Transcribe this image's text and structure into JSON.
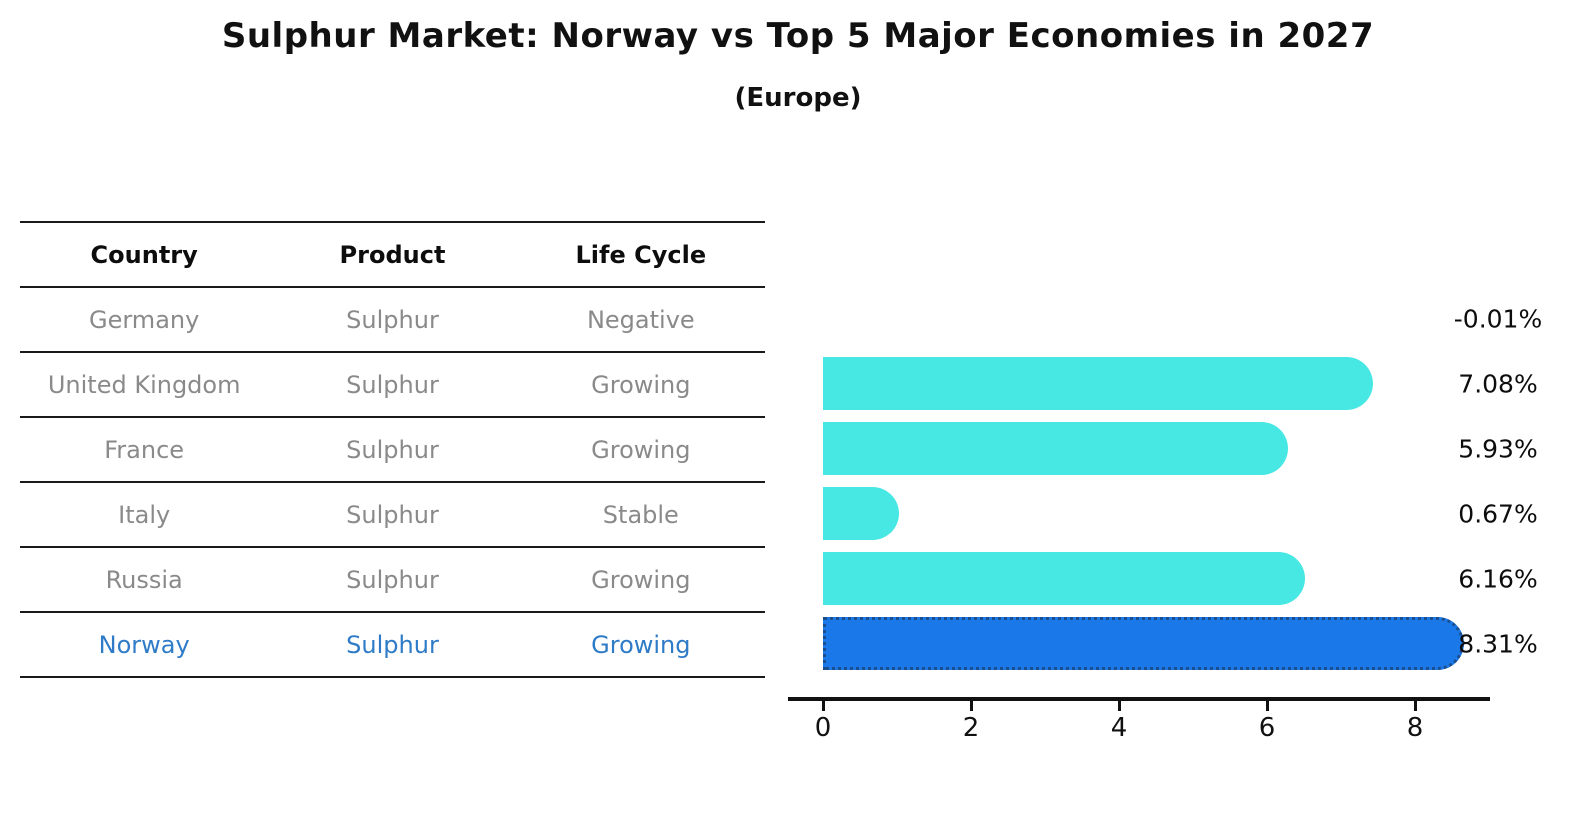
{
  "title": "Sulphur Market: Norway vs Top 5 Major Economies in 2027",
  "subtitle": "(Europe)",
  "table": {
    "headers": [
      "Country",
      "Product",
      "Life Cycle"
    ],
    "rows": [
      {
        "country": "Germany",
        "product": "Sulphur",
        "life_cycle": "Negative",
        "highlight": false
      },
      {
        "country": "United Kingdom",
        "product": "Sulphur",
        "life_cycle": "Growing",
        "highlight": false
      },
      {
        "country": "France",
        "product": "Sulphur",
        "life_cycle": "Growing",
        "highlight": false
      },
      {
        "country": "Italy",
        "product": "Sulphur",
        "life_cycle": "Stable",
        "highlight": false
      },
      {
        "country": "Russia",
        "product": "Sulphur",
        "life_cycle": "Growing",
        "highlight": true
      }
    ],
    "highlight_row": {
      "country": "Norway",
      "product": "Sulphur",
      "life_cycle": "Growing"
    }
  },
  "chart_data": {
    "type": "bar",
    "orientation": "horizontal",
    "title": "Sulphur Market: Norway vs Top 5 Major Economies in 2027",
    "subtitle": "(Europe)",
    "categories": [
      "Germany",
      "United Kingdom",
      "France",
      "Italy",
      "Russia",
      "Norway"
    ],
    "values": [
      -0.01,
      7.08,
      5.93,
      0.67,
      6.16,
      8.31
    ],
    "value_labels": [
      "-0.01%",
      "7.08%",
      "5.93%",
      "0.67%",
      "6.16%",
      "8.31%"
    ],
    "x_ticks": [
      0,
      2,
      4,
      6,
      8
    ],
    "xlim": [
      0,
      9
    ],
    "grid": false,
    "legend": "none",
    "highlight_index": 5,
    "bar_color": "#47E8E4",
    "highlight_color": "#1B78E8",
    "highlight_edge_color": "#1A4E8E",
    "value_label_color": "#0d0d0d"
  },
  "colors": {
    "background": "#ffffff",
    "table_line": "#1a1a1a",
    "table_text": "#8a8a8a",
    "header_text": "#0d0d0d",
    "highlight_text": "#2E7BC7",
    "axis": "#111111"
  }
}
